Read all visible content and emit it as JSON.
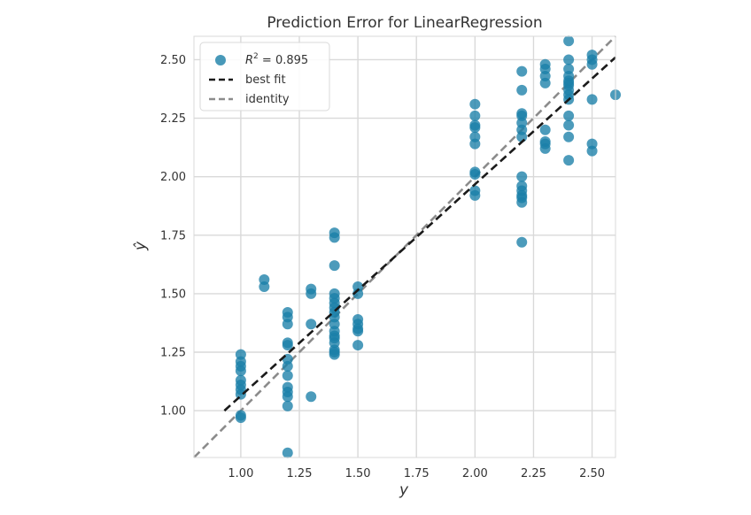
{
  "chart_data": {
    "type": "scatter",
    "title": "Prediction Error for LinearRegression",
    "xlabel": "y",
    "ylabel": "ŷ",
    "xlim": [
      0.8,
      2.6
    ],
    "ylim": [
      0.8,
      2.6
    ],
    "xticks": [
      1.0,
      1.25,
      1.5,
      1.75,
      2.0,
      2.25,
      2.5
    ],
    "yticks": [
      1.0,
      1.25,
      1.5,
      1.75,
      2.0,
      2.25,
      2.5
    ],
    "xtick_labels": [
      "1.00",
      "1.25",
      "1.50",
      "1.75",
      "2.00",
      "2.25",
      "2.50"
    ],
    "ytick_labels": [
      "1.00",
      "1.25",
      "1.50",
      "1.75",
      "2.00",
      "2.25",
      "2.50"
    ],
    "grid": true,
    "legend_position": "top-left",
    "colors": {
      "points": "#1a7fa8",
      "best_fit": "#1a1a1a",
      "identity": "#8c8c8c",
      "grid": "#d9d9d9",
      "background": "#ffffff"
    },
    "legend": {
      "r2_label": "R",
      "r2_exponent": "2",
      "r2_value": " = 0.895",
      "best_fit_label": "best fit",
      "identity_label": "identity"
    },
    "r2": 0.895,
    "best_fit": {
      "x": [
        0.93,
        2.6
      ],
      "y": [
        1.0,
        2.51
      ]
    },
    "identity": {
      "x": [
        0.8,
        2.6
      ],
      "y": [
        0.8,
        2.6
      ]
    },
    "points": {
      "x": [
        1.0,
        1.0,
        1.0,
        1.0,
        1.0,
        1.0,
        1.0,
        1.0,
        1.0,
        1.0,
        1.1,
        1.1,
        1.2,
        1.2,
        1.2,
        1.2,
        1.2,
        1.2,
        1.2,
        1.2,
        1.2,
        1.2,
        1.2,
        1.2,
        1.2,
        1.3,
        1.3,
        1.3,
        1.3,
        1.4,
        1.4,
        1.4,
        1.4,
        1.4,
        1.4,
        1.4,
        1.4,
        1.4,
        1.4,
        1.4,
        1.4,
        1.4,
        1.4,
        1.4,
        1.4,
        1.4,
        1.5,
        1.5,
        1.5,
        1.5,
        1.5,
        1.5,
        1.5,
        2.0,
        2.0,
        2.0,
        2.0,
        2.0,
        2.0,
        2.0,
        2.0,
        2.0,
        2.0,
        2.2,
        2.2,
        2.2,
        2.2,
        2.2,
        2.2,
        2.2,
        2.2,
        2.2,
        2.2,
        2.2,
        2.2,
        2.2,
        2.2,
        2.3,
        2.3,
        2.3,
        2.3,
        2.3,
        2.3,
        2.3,
        2.3,
        2.4,
        2.4,
        2.4,
        2.4,
        2.4,
        2.4,
        2.4,
        2.4,
        2.4,
        2.4,
        2.4,
        2.4,
        2.4,
        2.4,
        2.5,
        2.5,
        2.5,
        2.5,
        2.5,
        2.5,
        2.6
      ],
      "y": [
        1.24,
        1.21,
        1.19,
        1.17,
        1.13,
        1.11,
        1.09,
        1.07,
        0.98,
        0.97,
        1.56,
        1.53,
        1.42,
        1.4,
        1.37,
        1.29,
        1.28,
        1.22,
        1.19,
        1.15,
        1.1,
        1.08,
        1.06,
        1.02,
        0.82,
        1.52,
        1.5,
        1.37,
        1.06,
        1.76,
        1.74,
        1.62,
        1.5,
        1.48,
        1.46,
        1.44,
        1.42,
        1.4,
        1.37,
        1.34,
        1.32,
        1.31,
        1.29,
        1.26,
        1.25,
        1.24,
        1.53,
        1.5,
        1.39,
        1.37,
        1.35,
        1.34,
        1.28,
        2.31,
        2.26,
        2.22,
        2.21,
        2.17,
        2.14,
        2.02,
        2.01,
        1.94,
        1.92,
        2.45,
        2.37,
        2.27,
        2.26,
        2.23,
        2.2,
        2.17,
        2.0,
        1.96,
        1.94,
        1.92,
        1.91,
        1.89,
        1.72,
        2.48,
        2.46,
        2.43,
        2.4,
        2.2,
        2.15,
        2.14,
        2.12,
        2.58,
        2.5,
        2.46,
        2.43,
        2.41,
        2.39,
        2.37,
        2.35,
        2.33,
        2.26,
        2.22,
        2.17,
        2.07,
        2.4,
        2.52,
        2.5,
        2.48,
        2.33,
        2.14,
        2.11,
        2.35
      ]
    }
  }
}
